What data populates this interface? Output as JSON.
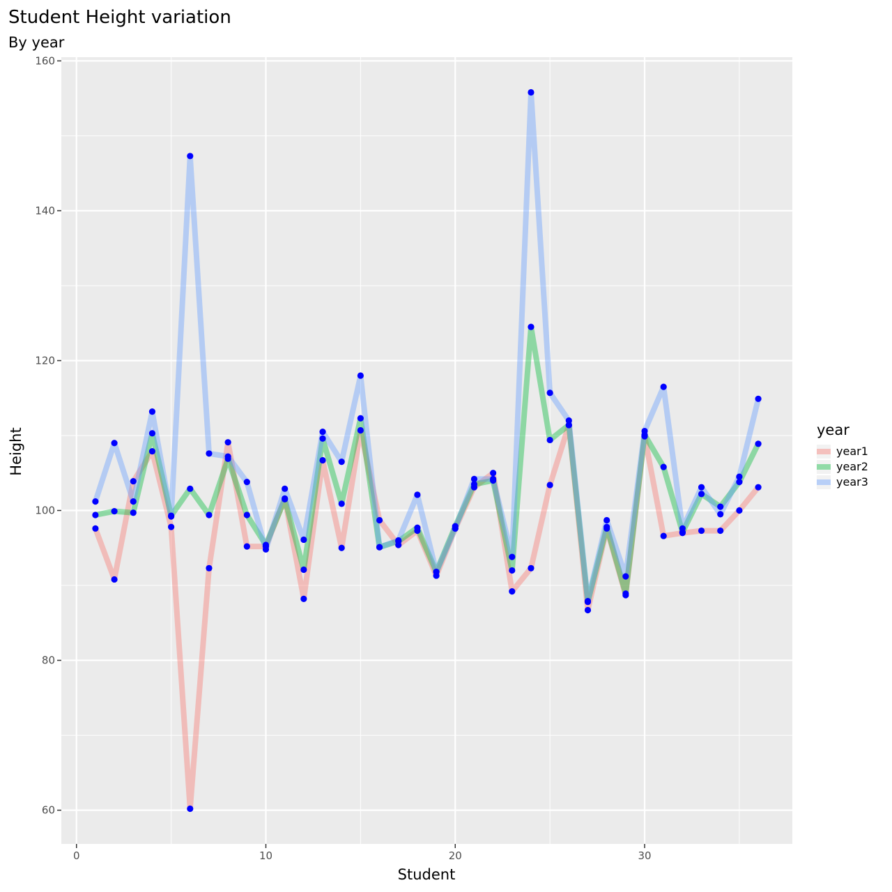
{
  "chart_data": {
    "type": "line",
    "title": "Student Height variation",
    "subtitle": "By year",
    "xlabel": "Student",
    "ylabel": "Height",
    "xlim": [
      -0.8,
      37.8
    ],
    "ylim": [
      55.5,
      160.5
    ],
    "xticks": [
      0,
      10,
      20,
      30
    ],
    "yticks": [
      60,
      80,
      100,
      120,
      140,
      160
    ],
    "grid": true,
    "legend": {
      "title": "year",
      "position": "right"
    },
    "point_color": "#0000ff",
    "panel_background": "#ebebeb",
    "x": [
      1,
      2,
      3,
      4,
      5,
      6,
      7,
      8,
      9,
      10,
      11,
      12,
      13,
      14,
      15,
      16,
      17,
      18,
      19,
      20,
      21,
      22,
      23,
      24,
      25,
      26,
      27,
      28,
      29,
      30,
      31,
      32,
      33,
      34,
      35,
      36
    ],
    "series": [
      {
        "name": "year1",
        "color": "#f8766d",
        "values": [
          97.6,
          90.8,
          103.9,
          107.9,
          97.8,
          60.2,
          92.3,
          109.1,
          95.2,
          95.2,
          101.6,
          88.2,
          106.7,
          95.0,
          110.7,
          98.7,
          95.4,
          97.3,
          91.3,
          97.6,
          103.1,
          105.0,
          89.2,
          92.3,
          103.4,
          111.4,
          86.7,
          97.6,
          88.7,
          109.9,
          96.6,
          97.0,
          97.3,
          97.3,
          100.0,
          103.1
        ]
      },
      {
        "name": "year2",
        "color": "#00ba38",
        "values": [
          99.4,
          99.9,
          99.7,
          110.3,
          99.3,
          102.9,
          99.4,
          106.9,
          99.4,
          95.4,
          101.5,
          92.1,
          109.6,
          100.9,
          112.3,
          95.1,
          95.9,
          97.7,
          91.8,
          97.9,
          103.5,
          104.0,
          92.0,
          124.5,
          109.4,
          111.4,
          87.8,
          97.8,
          88.9,
          110.1,
          105.8,
          97.1,
          102.2,
          100.5,
          103.8,
          108.9
        ]
      },
      {
        "name": "year3",
        "color": "#619cff",
        "values": [
          101.2,
          109.0,
          101.2,
          113.2,
          99.2,
          147.3,
          107.6,
          107.2,
          103.8,
          94.8,
          102.9,
          96.1,
          110.5,
          106.5,
          118.0,
          95.1,
          96.0,
          102.1,
          91.8,
          97.6,
          104.2,
          104.2,
          93.8,
          155.8,
          115.7,
          112.0,
          87.9,
          98.7,
          91.2,
          110.6,
          116.5,
          97.6,
          103.1,
          99.5,
          104.5,
          114.9
        ]
      }
    ]
  }
}
